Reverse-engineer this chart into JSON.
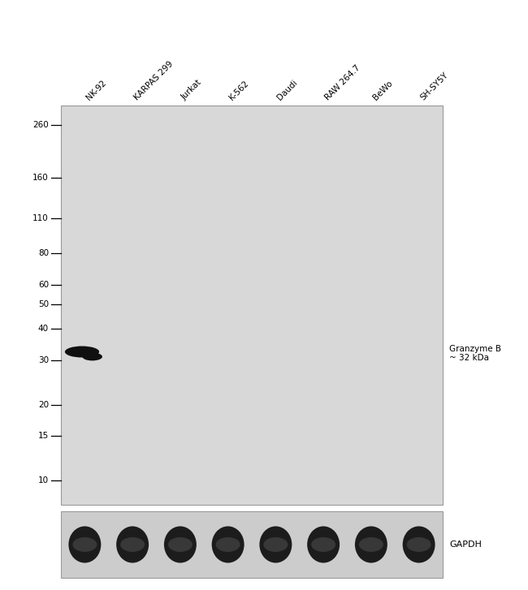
{
  "figure_width": 6.5,
  "figure_height": 7.27,
  "panel_bg": "#d8d8d8",
  "gapdh_bg": "#d0d0d0",
  "lane_labels": [
    "NK-92",
    "KARPAS 299",
    "Jurkat",
    "K-562",
    "Daudi",
    "RAW 264.7",
    "BeWo",
    "SH-SY5Y"
  ],
  "mw_markers": [
    260,
    160,
    110,
    80,
    60,
    50,
    40,
    30,
    20,
    15,
    10
  ],
  "band_label": "Granzyme B\n~ 32 kDa",
  "gapdh_label": "GAPDH",
  "band_lane": 0,
  "band_mw": 32,
  "num_lanes": 8,
  "mw_min": 8,
  "mw_max": 310
}
